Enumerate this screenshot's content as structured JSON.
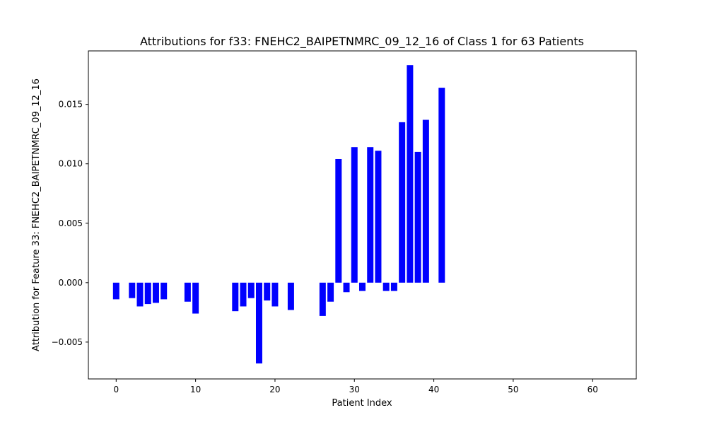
{
  "chart_data": {
    "type": "bar",
    "title": "Attributions for f33: FNEHC2_BAIPETNMRC_09_12_16 of Class 1 for 63 Patients",
    "xlabel": "Patient Index",
    "ylabel": "Attribution for Feature 33: FNEHC2_BAIPETNMRC_09_12_16",
    "xlim": [
      -3.5,
      65.5
    ],
    "ylim": [
      -0.0081,
      0.0195
    ],
    "x_ticks": [
      0,
      10,
      20,
      30,
      40,
      50,
      60
    ],
    "x_tick_labels": [
      "0",
      "10",
      "20",
      "30",
      "40",
      "50",
      "60"
    ],
    "y_ticks": [
      -0.005,
      0.0,
      0.005,
      0.01,
      0.015
    ],
    "y_tick_labels": [
      "−0.005",
      "0.000",
      "0.005",
      "0.010",
      "0.015"
    ],
    "bar_color": "#0000ff",
    "grid": false,
    "x": [
      0,
      1,
      2,
      3,
      4,
      5,
      6,
      7,
      8,
      9,
      10,
      11,
      12,
      13,
      14,
      15,
      16,
      17,
      18,
      19,
      20,
      21,
      22,
      23,
      24,
      25,
      26,
      27,
      28,
      29,
      30,
      31,
      32,
      33,
      34,
      35,
      36,
      37,
      38,
      39,
      40,
      41,
      42,
      43,
      44,
      45,
      46,
      47,
      48,
      49,
      50,
      51,
      52,
      53,
      54,
      55,
      56,
      57,
      58,
      59,
      60,
      61,
      62
    ],
    "values": [
      -0.0014,
      0,
      -0.0013,
      -0.002,
      -0.0018,
      -0.0017,
      -0.0014,
      0,
      0,
      -0.0016,
      -0.0026,
      0,
      0,
      0,
      0,
      -0.0024,
      -0.002,
      -0.0013,
      -0.0068,
      -0.0015,
      -0.002,
      0,
      -0.0023,
      0,
      0,
      0,
      -0.0028,
      -0.0016,
      0.0104,
      -0.0008,
      0.0114,
      -0.0007,
      0.0114,
      0.0111,
      -0.0007,
      -0.0007,
      0.0135,
      0.0183,
      0.011,
      0.0137,
      0,
      0.0164,
      0,
      0,
      0,
      0,
      0,
      0,
      0,
      0,
      0,
      0,
      0,
      0,
      0,
      0,
      0,
      0,
      0,
      0,
      0,
      0,
      0
    ]
  }
}
